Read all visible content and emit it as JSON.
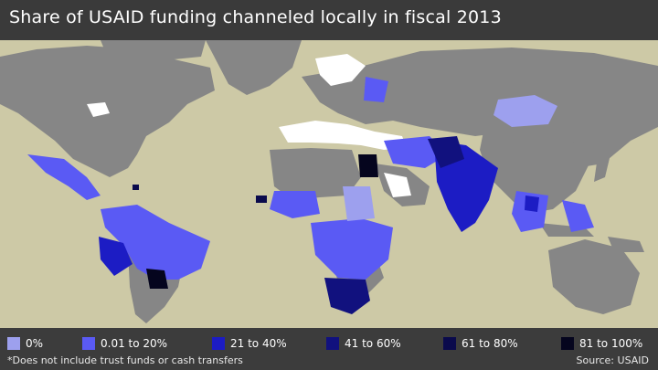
{
  "title": "Share of USAID funding channeled locally in fiscal 2013",
  "footnote": "*Does not include trust funds or cash transfers",
  "source": "Source: USAID",
  "colors": {
    "ocean": "#cdc9a6",
    "land_no_data": "#868686",
    "land_excluded": "#ffffff",
    "zero": "#9da0ee",
    "low": "#5a5af4",
    "c21_40": "#1c1cc4",
    "c41_60": "#11117e",
    "c61_80": "#0a0a4c",
    "c81_100": "#05051e"
  },
  "legend": [
    {
      "label": "0%",
      "color": "#9da0ee"
    },
    {
      "label": "0.01 to 20%",
      "color": "#5a5af4"
    },
    {
      "label": "21 to 40%",
      "color": "#1c1cc4"
    },
    {
      "label": "41 to 60%",
      "color": "#11117e"
    },
    {
      "label": "61 to 80%",
      "color": "#0a0a4c"
    },
    {
      "label": "81 to 100%",
      "color": "#05051e"
    }
  ]
}
